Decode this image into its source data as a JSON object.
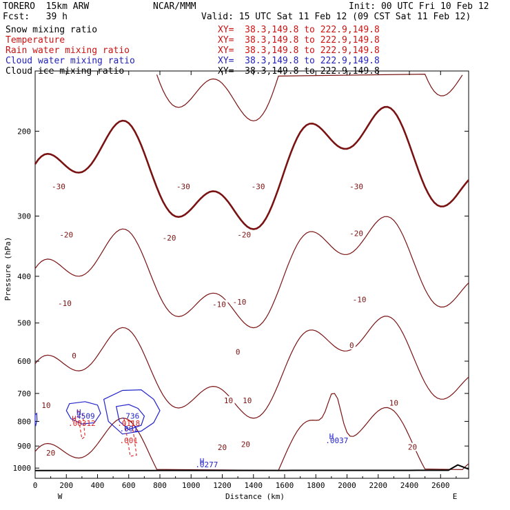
{
  "header": {
    "model": "TORERO  15km ARW",
    "center": "NCAR/MMM",
    "init": "Init: 00 UTC Fri 10 Feb 12",
    "fcst": "Fcst:   39 h",
    "valid": "Valid: 15 UTC Sat 11 Feb 12 (09 CST Sat 11 Feb 12)",
    "fields": [
      {
        "name": "Snow mixing ratio",
        "xy": "XY=  38.3,149.8 to 222.9,149.8",
        "color": "#000000"
      },
      {
        "name": "Temperature",
        "xy": "XY=  38.3,149.8 to 222.9,149.8",
        "color": "#cc1111"
      },
      {
        "name": "Rain water mixing ratio",
        "xy": "XY=  38.3,149.8 to 222.9,149.8",
        "color": "#cc1111"
      },
      {
        "name": "Cloud water mixing ratio",
        "xy": "XY=  38.3,149.8 to 222.9,149.8",
        "color": "#2222bb"
      },
      {
        "name": "Cloud ice mixing ratio",
        "xy": "XY=  38.3,149.8 to 222.9,149.8",
        "color": "#000000"
      }
    ]
  },
  "chart_data": {
    "type": "line",
    "xlabel": "Distance (km)",
    "ylabel": "Pressure (hPa)",
    "x_ticks": [
      "0",
      "200",
      "400",
      "600",
      "800",
      "1000",
      "1200",
      "1400",
      "1600",
      "1800",
      "2000",
      "2200",
      "2400",
      "2600"
    ],
    "y_ticks": [
      "200",
      "300",
      "400",
      "500",
      "600",
      "700",
      "800",
      "900",
      "1000"
    ],
    "xlim": [
      0,
      2780
    ],
    "ylim_log": [
      150,
      1050
    ],
    "x_end_labels": {
      "left": "W",
      "right": "E"
    },
    "colors": {
      "temperature": "#7a1212",
      "rain": "#dd2222",
      "cloud_water": "#2222cc",
      "ground": "#000000"
    },
    "isotherm_levels_degC": [
      -60,
      -55,
      -50,
      -45,
      -40,
      -35,
      -30,
      -25,
      -20,
      -15,
      -10,
      -5,
      0,
      5,
      10,
      15,
      20,
      25
    ],
    "isotherm_labels": [
      {
        "text": "-30",
        "x": 150,
        "p": 262
      },
      {
        "text": "-30",
        "x": 950,
        "p": 262
      },
      {
        "text": "-30",
        "x": 1430,
        "p": 262
      },
      {
        "text": "-30",
        "x": 2060,
        "p": 262
      },
      {
        "text": "-20",
        "x": 200,
        "p": 330
      },
      {
        "text": "-20",
        "x": 860,
        "p": 335
      },
      {
        "text": "-20",
        "x": 1340,
        "p": 330
      },
      {
        "text": "-20",
        "x": 2060,
        "p": 328
      },
      {
        "text": "-10",
        "x": 190,
        "p": 458
      },
      {
        "text": "-10",
        "x": 1180,
        "p": 460
      },
      {
        "text": "-10",
        "x": 1310,
        "p": 455
      },
      {
        "text": "-10",
        "x": 2080,
        "p": 450
      },
      {
        "text": "0",
        "x": 250,
        "p": 588
      },
      {
        "text": "0",
        "x": 1300,
        "p": 578
      },
      {
        "text": "0",
        "x": 2030,
        "p": 560
      },
      {
        "text": "10",
        "x": 70,
        "p": 746
      },
      {
        "text": "10",
        "x": 1240,
        "p": 728
      },
      {
        "text": "10",
        "x": 1360,
        "p": 728
      },
      {
        "text": "10",
        "x": 2300,
        "p": 737
      },
      {
        "text": "20",
        "x": 100,
        "p": 935
      },
      {
        "text": "20",
        "x": 1200,
        "p": 912
      },
      {
        "text": "20",
        "x": 1350,
        "p": 898
      },
      {
        "text": "20",
        "x": 2420,
        "p": 910
      }
    ],
    "maxima_labels": [
      {
        "text": "H",
        "x": 280,
        "p": 775,
        "color": "#2222cc"
      },
      {
        "text": ".4509",
        "x": 310,
        "p": 790,
        "color": "#2222cc"
      },
      {
        "text": "H",
        "x": 250,
        "p": 800,
        "color": "#dd2222"
      },
      {
        "text": ".00312",
        "x": 300,
        "p": 818,
        "color": "#dd2222"
      },
      {
        "text": ".736",
        "x": 610,
        "p": 790,
        "color": "#2222cc"
      },
      {
        "text": ".0118",
        "x": 600,
        "p": 818,
        "color": "#dd2222"
      },
      {
        "text": ".001",
        "x": 600,
        "p": 840,
        "color": "#2222cc"
      },
      {
        "text": ".001",
        "x": 600,
        "p": 888,
        "color": "#dd2222"
      },
      {
        "text": "H",
        "x": 1900,
        "p": 870,
        "color": "#2222cc"
      },
      {
        "text": ".0037",
        "x": 1935,
        "p": 887,
        "color": "#2222cc"
      },
      {
        "text": "H",
        "x": 1070,
        "p": 980,
        "color": "#2222cc"
      },
      {
        "text": ".0277",
        "x": 1100,
        "p": 996,
        "color": "#2222cc"
      }
    ]
  }
}
